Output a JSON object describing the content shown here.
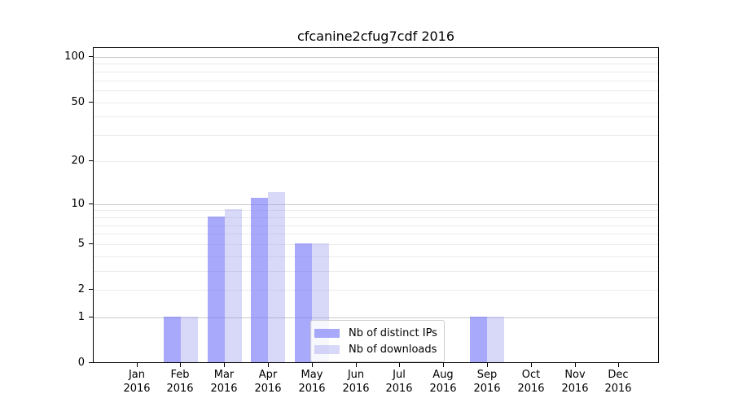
{
  "figure": {
    "title": "cfcanine2cfug7cdf 2016"
  },
  "legend": {
    "items": [
      {
        "label": "Nb of distinct IPs"
      },
      {
        "label": "Nb of downloads"
      }
    ]
  },
  "colors": {
    "bar_distinct_ips": "rgba(120,120,248,0.64)",
    "bar_downloads": "rgba(150,150,240,0.37)",
    "grid_major": "#c9c9c9",
    "grid_minor": "#ebebeb",
    "axis": "#000000",
    "legend_border": "#cccccc"
  },
  "chart_data": {
    "type": "bar",
    "title": "cfcanine2cfug7cdf 2016",
    "categories": [
      "Jan 2016",
      "Feb 2016",
      "Mar 2016",
      "Apr 2016",
      "May 2016",
      "Jun 2016",
      "Jul 2016",
      "Aug 2016",
      "Sep 2016",
      "Oct 2016",
      "Nov 2016",
      "Dec 2016"
    ],
    "series": [
      {
        "name": "Nb of distinct IPs",
        "values": [
          0,
          1,
          8,
          11,
          5,
          0,
          0,
          0,
          1,
          0,
          0,
          0
        ]
      },
      {
        "name": "Nb of downloads",
        "values": [
          0,
          1,
          9,
          12,
          5,
          0,
          0,
          0,
          1,
          0,
          0,
          0
        ]
      }
    ],
    "xlabel": "",
    "ylabel": "",
    "y_scale": "log1p",
    "ylim": [
      0,
      116
    ],
    "y_ticks": [
      0,
      1,
      2,
      5,
      10,
      20,
      50,
      100
    ],
    "y_major_gridlines": [
      1,
      10,
      100
    ],
    "y_minor_gridlines": [
      2,
      3,
      4,
      5,
      6,
      7,
      8,
      9,
      20,
      30,
      40,
      50,
      60,
      70,
      80,
      90
    ],
    "grid": true,
    "legend_position": "inside lower center"
  }
}
